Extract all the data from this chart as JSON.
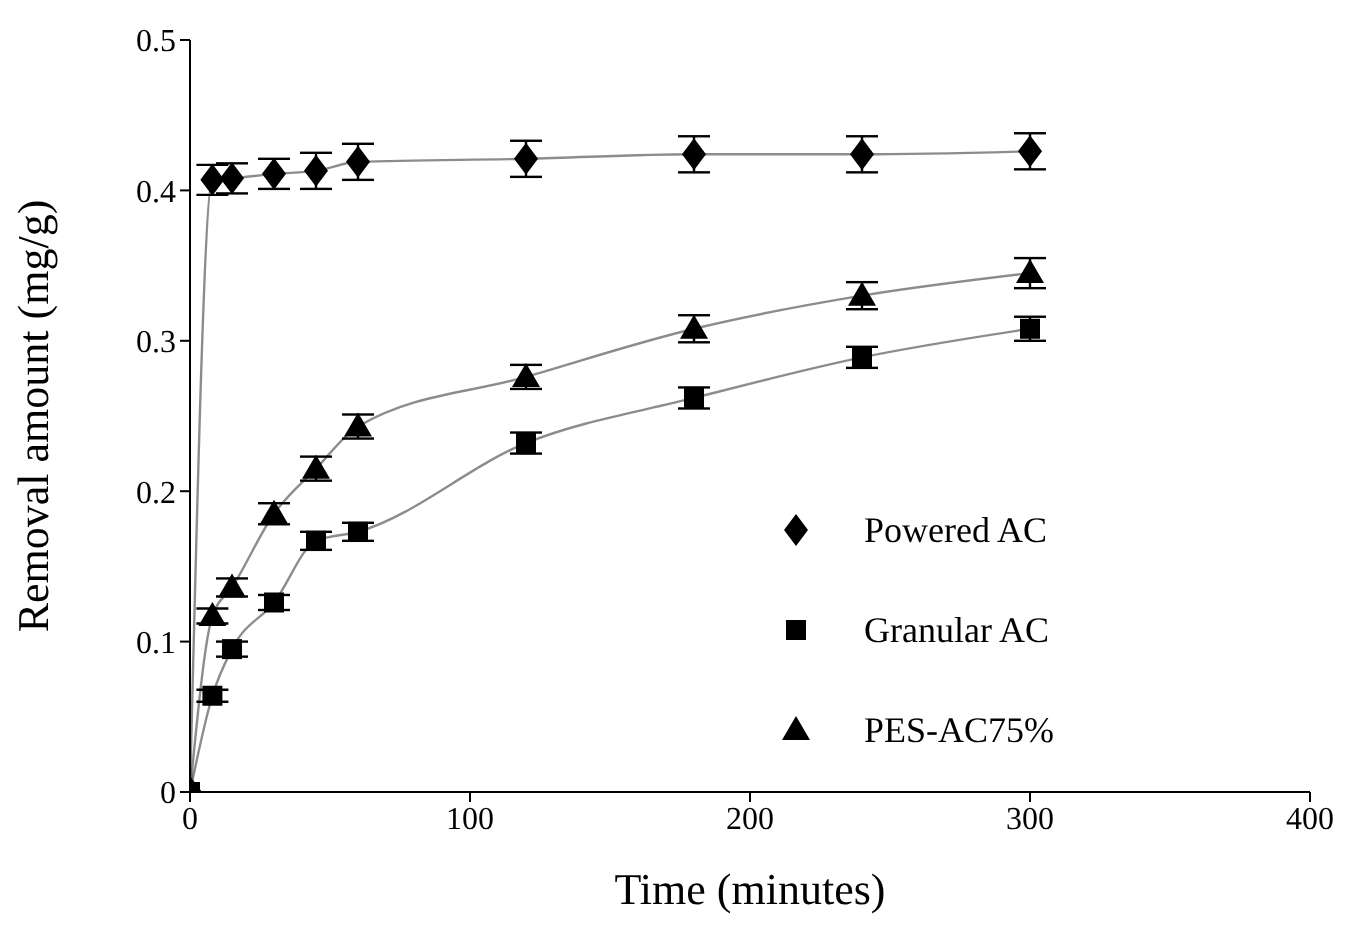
{
  "chart_data": {
    "type": "line",
    "xlabel": "Time (minutes)",
    "ylabel": "Removal amount (mg/g)",
    "xlim": [
      0,
      400
    ],
    "xticks": [
      0,
      100,
      200,
      300,
      400
    ],
    "ylim": [
      0,
      0.5
    ],
    "yticks": [
      0,
      0.1,
      0.2,
      0.3,
      0.4,
      0.5
    ],
    "grid": false,
    "legend": "right",
    "x": [
      0,
      8,
      15,
      30,
      45,
      60,
      120,
      180,
      240,
      300
    ],
    "series": [
      {
        "name": "Powered AC",
        "color": "#000000",
        "marker": "diamond",
        "values": [
          0,
          0.407,
          0.408,
          0.411,
          0.413,
          0.419,
          0.421,
          0.424,
          0.424,
          0.426
        ],
        "errors": [
          null,
          0.01,
          0.01,
          0.01,
          0.012,
          0.012,
          0.012,
          0.012,
          0.012,
          0.012
        ]
      },
      {
        "name": "Granular AC",
        "color": "#000000",
        "marker": "square",
        "values": [
          0,
          0.064,
          0.095,
          0.126,
          0.167,
          0.173,
          0.232,
          0.262,
          0.289,
          0.308
        ],
        "errors": [
          null,
          0.004,
          0.005,
          0.005,
          0.006,
          0.006,
          0.007,
          0.007,
          0.007,
          0.008
        ]
      },
      {
        "name": "PES-AC75%",
        "color": "#000000",
        "marker": "triangle",
        "values": [
          0,
          0.117,
          0.136,
          0.185,
          0.215,
          0.243,
          0.276,
          0.308,
          0.33,
          0.345
        ],
        "errors": [
          null,
          0.005,
          0.006,
          0.007,
          0.008,
          0.008,
          0.008,
          0.009,
          0.009,
          0.01
        ]
      }
    ]
  }
}
